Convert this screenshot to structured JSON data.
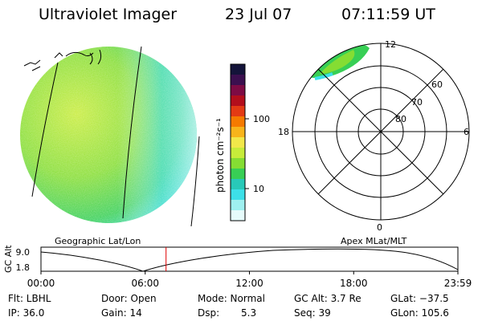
{
  "header": {
    "instrument": "Ultraviolet Imager",
    "date": "23 Jul 07",
    "time": "07:11:59 UT"
  },
  "panels": {
    "left_label": "Geographic Lat/Lon",
    "right_label": "Apex MLat/MLT"
  },
  "colorbar": {
    "label": "photon cm⁻²s⁻¹",
    "ticks": [
      "100",
      "10"
    ],
    "colors": [
      "#14143a",
      "#3c0f4f",
      "#7e0b44",
      "#b30e1c",
      "#e33a14",
      "#f57a00",
      "#f8b41b",
      "#f2e84a",
      "#c7ec3a",
      "#85dd33",
      "#38cf55",
      "#28c9b8",
      "#3de0e8",
      "#9ff0f0",
      "#e6fbfb"
    ]
  },
  "polar": {
    "mlt_labels": {
      "top": "12",
      "right": "6",
      "bottom": "0",
      "left": "18"
    },
    "lat_labels": [
      "60",
      "70",
      "80"
    ]
  },
  "altitude_plot": {
    "ylabel": "GC Alt",
    "yticks": [
      "9.0",
      "1.8"
    ],
    "xticks": [
      "00:00",
      "06:00",
      "12:00",
      "18:00",
      "23:59"
    ],
    "current_time_fraction": 0.3
  },
  "info": {
    "row1": {
      "filter": "Flt: LBHL",
      "door": "Door: Open",
      "mode": "Mode: Normal",
      "gc_alt": "GC Alt: 3.7 Re",
      "glat": "GLat: −37.5"
    },
    "row2": {
      "ip": "IP: 36.0",
      "gain": "Gain: 14",
      "dsp_label": "Dsp:",
      "dsp_value": "5.3",
      "seq": "Seq: 39",
      "glon": "GLon: 105.6"
    }
  }
}
